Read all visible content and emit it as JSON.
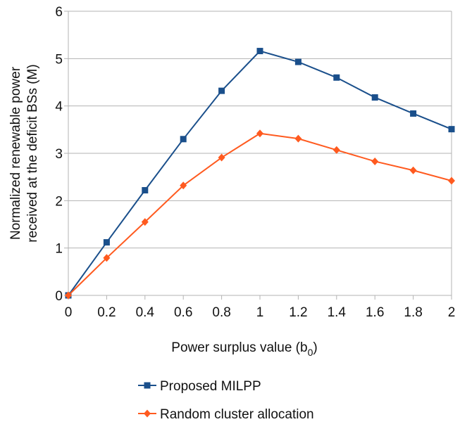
{
  "chart_data": {
    "type": "line",
    "title": "",
    "xlabel": "Power surplus value (b",
    "xlabel_sub": "0",
    "xlabel_suffix": ")",
    "ylabel_line1": "Normalized renewable power",
    "ylabel_line2": "received at the deficit BSs (M)",
    "x": [
      0,
      0.2,
      0.4,
      0.6,
      0.8,
      1,
      1.2,
      1.4,
      1.6,
      1.8,
      2
    ],
    "x_tick_labels": [
      "0",
      "0.2",
      "0.4",
      "0.6",
      "0.8",
      "1",
      "1.2",
      "1.4",
      "1.6",
      "1.8",
      "2"
    ],
    "y_tick_labels": [
      "0",
      "1",
      "2",
      "3",
      "4",
      "5",
      "6"
    ],
    "xlim": [
      0,
      2
    ],
    "ylim": [
      0,
      6
    ],
    "grid": "horizontal",
    "legend_position": "bottom",
    "series": [
      {
        "name": "Proposed MILPP",
        "color": "#1a4f8b",
        "marker": "square",
        "values": [
          0,
          1.12,
          2.22,
          3.3,
          4.32,
          5.16,
          4.93,
          4.6,
          4.18,
          3.84,
          3.51
        ]
      },
      {
        "name": "Random cluster allocation",
        "color": "#ff5a1f",
        "marker": "diamond",
        "values": [
          0,
          0.79,
          1.55,
          2.32,
          2.91,
          3.42,
          3.31,
          3.07,
          2.83,
          2.64,
          2.42
        ]
      }
    ]
  }
}
